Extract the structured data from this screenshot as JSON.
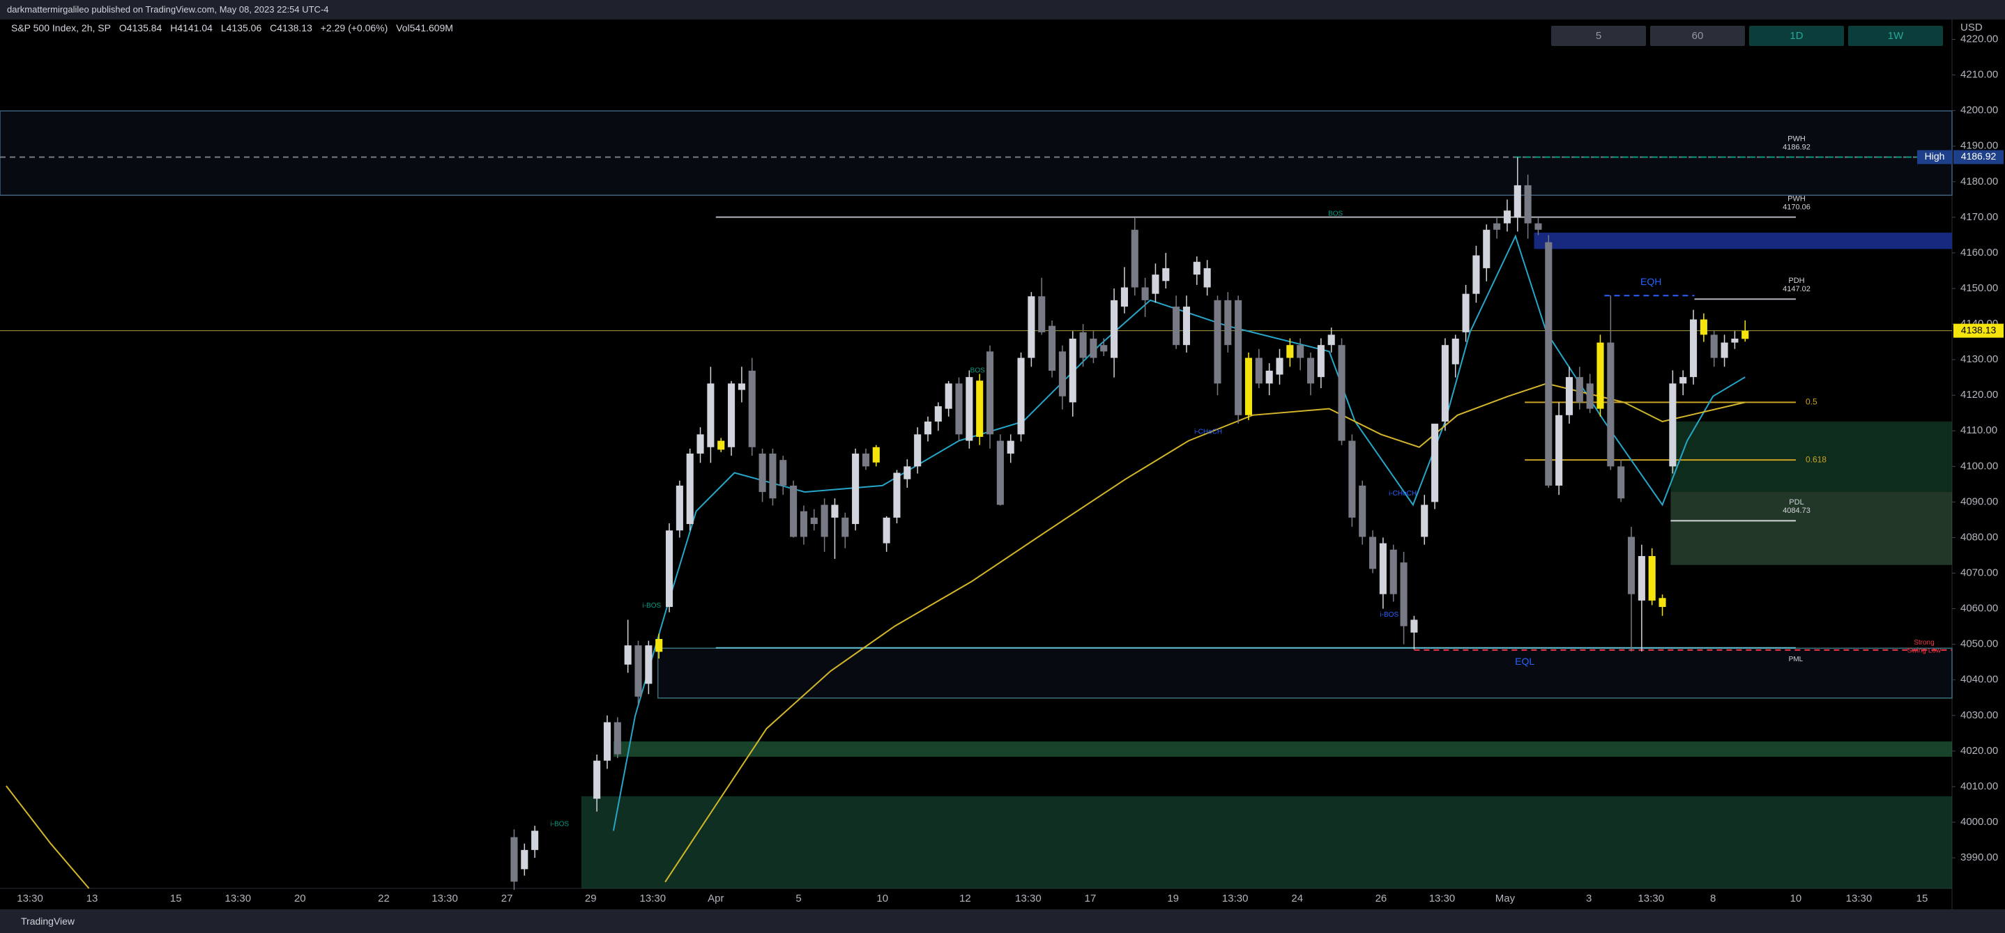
{
  "header": {
    "published": "darkmattermirgalileo published on TradingView.com, May 08, 2023 22:54 UTC-4",
    "symbol": "S&P 500 Index, 2h, SP",
    "ohlc": [
      "O4135.84",
      "H4141.04",
      "L4135.06",
      "C4138.13"
    ],
    "change": "+2.29 (+0.06%)",
    "volume": "Vol541.609M"
  },
  "interval_buttons": [
    "5",
    "60",
    "1D",
    "1W"
  ],
  "footer": "TradingView",
  "chart_data": {
    "type": "candlestick",
    "currency": "USD",
    "x": [
      -8,
      -7,
      -6,
      0,
      1,
      2,
      3,
      4,
      5,
      6,
      7,
      8,
      9,
      10,
      11,
      12,
      13,
      14,
      15,
      16,
      17,
      18,
      19,
      20,
      21,
      22,
      23,
      24,
      25,
      26,
      27,
      28,
      29,
      30,
      31,
      32,
      33,
      34,
      35,
      36,
      37,
      38,
      39,
      40,
      41,
      42,
      43,
      44,
      45,
      46,
      47,
      48,
      49,
      50,
      51,
      52,
      53,
      54,
      55,
      56,
      57,
      58,
      59,
      60,
      61,
      62,
      63,
      64,
      65,
      66,
      67,
      68,
      69,
      70,
      71,
      72,
      73,
      74,
      75,
      76,
      77,
      78,
      79,
      80,
      81,
      82,
      83,
      84,
      85,
      86,
      87,
      88,
      89,
      90,
      91,
      92,
      93,
      94,
      95,
      96,
      97,
      98,
      99,
      100,
      101,
      102,
      103,
      104,
      105,
      106,
      107,
      108,
      109,
      110,
      111
    ],
    "open": [
      3995.8,
      3986.8,
      3992.2,
      4006.6,
      4017.3,
      4028.1,
      4044.3,
      4049.7,
      4038.9,
      4047.9,
      4060.5,
      4082,
      4083.8,
      4103.6,
      4105.4,
      4107.2,
      4105.4,
      4121.5,
      4126.9,
      4103.6,
      4103.6,
      4101.8,
      4094.6,
      4087.4,
      4085.6,
      4089.2,
      4085.6,
      4085.6,
      4083.8,
      4103.6,
      4101.1,
      4078.4,
      4085.6,
      4096.4,
      4100,
      4109,
      4112.6,
      4116.2,
      4123.3,
      4107.2,
      4108.3,
      4132.3,
      4107.2,
      4103.6,
      4109,
      4130.5,
      4147.8,
      4139.5,
      4132.3,
      4118,
      4137.7,
      4135.9,
      4134.1,
      4130.5,
      4144.9,
      4166.5,
      4150.3,
      4148.5,
      4152.1,
      4144.9,
      4134.1,
      4153.9,
      4150.3,
      4146.7,
      4146.7,
      4146.7,
      4130.5,
      4130.5,
      4123.3,
      4125.8,
      4130.5,
      4134.1,
      4130.5,
      4125.1,
      4134.1,
      4134.1,
      4107.2,
      4094.6,
      4080.2,
      4064.1,
      4076.6,
      4073,
      4053.3,
      4080.2,
      4090,
      4112.6,
      4128.7,
      4137.7,
      4148.5,
      4155.7,
      4168.3,
      4168.3,
      4170,
      4179,
      4168.3,
      4163,
      4094.6,
      4114.4,
      4125.1,
      4123.3,
      4116.2,
      4134.8,
      4100,
      4080.2,
      4062.3,
      4074.8,
      4060.5,
      4100,
      4123.3,
      4125.1,
      4141.3,
      4137,
      4130.5,
      4134.8,
      4135.84
    ],
    "high": [
      3998,
      3994,
      3999,
      4019,
      4030,
      4029.5,
      4056.9,
      4051,
      4051,
      4053,
      4084,
      4096,
      4105,
      4111,
      4128,
      4108,
      4124,
      4128,
      4130.5,
      4105,
      4105,
      4103,
      4096,
      4089,
      4088,
      4091,
      4091,
      4087,
      4105,
      4105,
      4106,
      4086,
      4099,
      4102,
      4111,
      4114,
      4118,
      4124,
      4125,
      4127,
      4126,
      4134,
      4109,
      4109,
      4132,
      4149,
      4153,
      4141,
      4134,
      4138,
      4140,
      4138,
      4136,
      4150,
      4156,
      4170,
      4153,
      4157,
      4160,
      4148,
      4148,
      4159,
      4158,
      4148,
      4149,
      4148,
      4132,
      4133,
      4129,
      4133,
      4136,
      4136,
      4132,
      4136,
      4139,
      4136,
      4109,
      4096,
      4082,
      4080,
      4078,
      4076,
      4058,
      4092,
      4112,
      4136,
      4137,
      4151,
      4162,
      4168,
      4170,
      4175,
      4186.92,
      4182,
      4170,
      4165,
      4118,
      4128,
      4128,
      4126,
      4137,
      4148,
      4102,
      4083,
      4078,
      4077,
      4064,
      4127,
      4127,
      4144,
      4143,
      4138,
      4137,
      4138,
      4141.04
    ],
    "low": [
      3981,
      3985,
      3990,
      4003,
      4015,
      4018,
      4042,
      4033,
      4036,
      4046,
      4059,
      4080,
      4082,
      4101,
      4101,
      4104,
      4103,
      4118,
      4103,
      4090,
      4089,
      4092,
      4080,
      4078,
      4082,
      4076,
      4074,
      4077,
      4082,
      4099,
      4100,
      4076,
      4084,
      4094,
      4098,
      4107,
      4110,
      4114,
      4107,
      4105,
      4106,
      4105,
      4089,
      4101,
      4107,
      4128,
      4137,
      4125,
      4116,
      4114,
      4128,
      4129,
      4131,
      4125,
      4143,
      4148,
      4142,
      4146,
      4150,
      4133,
      4132,
      4151,
      4148,
      4120,
      4132,
      4112,
      4113,
      4122,
      4120,
      4123,
      4128,
      4127,
      4120,
      4122,
      4132,
      4106,
      4083,
      4078,
      4070,
      4060,
      4062,
      4050,
      4048.6,
      4078,
      4088,
      4110,
      4125,
      4135,
      4146,
      4152,
      4164,
      4166,
      4166,
      4164,
      4165,
      4094,
      4092,
      4112,
      4116,
      4115,
      4114,
      4099,
      4090,
      4048,
      4048,
      4061,
      4058,
      4098,
      4120,
      4123,
      4135,
      4128,
      4128,
      4133,
      4135.06
    ],
    "close": [
      3983.3,
      3992.2,
      3997.6,
      4017.3,
      4028.1,
      4019.1,
      4049.7,
      4035.3,
      4049.7,
      4051.5,
      4082,
      4094.6,
      4103.6,
      4109,
      4123.3,
      4104.7,
      4123.3,
      4123.3,
      4105.4,
      4092.8,
      4091,
      4094.6,
      4080.2,
      4080.2,
      4083.8,
      4080.2,
      4089.2,
      4080.2,
      4103.6,
      4100,
      4105.4,
      4085.6,
      4098.2,
      4100,
      4109,
      4112.6,
      4116.9,
      4123.3,
      4109,
      4125.1,
      4124.1,
      4109,
      4089.2,
      4107.2,
      4130.5,
      4147.8,
      4137.7,
      4126.9,
      4119.7,
      4135.9,
      4130.5,
      4130.5,
      4132.3,
      4146.7,
      4150.3,
      4150.3,
      4146.7,
      4153.9,
      4155.7,
      4134.1,
      4144.9,
      4157.5,
      4155.7,
      4123.3,
      4134.1,
      4114.4,
      4114.4,
      4123.3,
      4126.9,
      4130.5,
      4134.1,
      4130.5,
      4123.3,
      4134.1,
      4137,
      4107.2,
      4085.6,
      4080.2,
      4071.2,
      4078.4,
      4064.1,
      4055.1,
      4056.9,
      4089.2,
      4112,
      4134.1,
      4135.9,
      4148.5,
      4159.3,
      4166.5,
      4166.5,
      4171.9,
      4179,
      4168.3,
      4166.5,
      4094.6,
      4114.4,
      4125.1,
      4118,
      4116.2,
      4134.8,
      4100,
      4091,
      4064.1,
      4074.8,
      4062.3,
      4063,
      4123.3,
      4125.1,
      4141.3,
      4137,
      4130.5,
      4134.8,
      4135.9,
      4138.13
    ],
    "up_color": "#d1d4dc",
    "down_color": "#787b86",
    "highlight_color": "#f5e50d",
    "highlight": [
      6,
      12,
      27,
      37,
      63,
      67,
      97,
      102,
      103,
      107,
      111
    ],
    "xlim": [
      -57.7,
      131
    ],
    "xticks": [
      {
        "value": -54.8,
        "label": "13:30"
      },
      {
        "value": -48.8,
        "label": "13"
      },
      {
        "value": -40.7,
        "label": "15"
      },
      {
        "value": -34.7,
        "label": "13:30"
      },
      {
        "value": -28.7,
        "label": "20"
      },
      {
        "value": -20.6,
        "label": "22"
      },
      {
        "value": -14.7,
        "label": "13:30"
      },
      {
        "value": -8.7,
        "label": "27"
      },
      {
        "value": -0.6,
        "label": "29"
      },
      {
        "value": 5.4,
        "label": "13:30"
      },
      {
        "value": 11.5,
        "label": "Apr"
      },
      {
        "value": 19.5,
        "label": "5"
      },
      {
        "value": 27.6,
        "label": "10"
      },
      {
        "value": 35.6,
        "label": "12"
      },
      {
        "value": 41.7,
        "label": "13:30"
      },
      {
        "value": 47.7,
        "label": "17"
      },
      {
        "value": 55.7,
        "label": "19"
      },
      {
        "value": 61.7,
        "label": "13:30"
      },
      {
        "value": 67.7,
        "label": "24"
      },
      {
        "value": 75.8,
        "label": "26"
      },
      {
        "value": 81.7,
        "label": "13:30"
      },
      {
        "value": 87.8,
        "label": "May"
      },
      {
        "value": 95.9,
        "label": "3"
      },
      {
        "value": 101.9,
        "label": "13:30"
      },
      {
        "value": 107.9,
        "label": "8"
      },
      {
        "value": 115.9,
        "label": "10"
      },
      {
        "value": 122,
        "label": "13:30"
      },
      {
        "value": 128.1,
        "label": "15"
      }
    ],
    "ylim": [
      3981.4,
      4225
    ],
    "yticks": [
      {
        "value": 3990,
        "label": "3990.00"
      },
      {
        "value": 4000,
        "label": "4000.00"
      },
      {
        "value": 4010,
        "label": "4010.00"
      },
      {
        "value": 4020,
        "label": "4020.00"
      },
      {
        "value": 4030,
        "label": "4030.00"
      },
      {
        "value": 4040,
        "label": "4040.00"
      },
      {
        "value": 4050,
        "label": "4050.00"
      },
      {
        "value": 4060,
        "label": "4060.00"
      },
      {
        "value": 4070,
        "label": "4070.00"
      },
      {
        "value": 4080,
        "label": "4080.00"
      },
      {
        "value": 4090,
        "label": "4090.00"
      },
      {
        "value": 4100,
        "label": "4100.00"
      },
      {
        "value": 4110,
        "label": "4110.00"
      },
      {
        "value": 4120,
        "label": "4120.00"
      },
      {
        "value": 4130,
        "label": "4130.00"
      },
      {
        "value": 4140,
        "label": "4140.00"
      },
      {
        "value": 4150,
        "label": "4150.00"
      },
      {
        "value": 4160,
        "label": "4160.00"
      },
      {
        "value": 4170,
        "label": "4170.00"
      },
      {
        "value": 4180,
        "label": "4180.00"
      },
      {
        "value": 4190,
        "label": "4190.00"
      },
      {
        "value": 4200,
        "label": "4200.00"
      },
      {
        "value": 4210,
        "label": "4210.00"
      },
      {
        "value": 4220,
        "label": "4220.00"
      }
    ],
    "moving_averages": [
      {
        "color": "#26a6c8",
        "x": [
          1.6,
          3.7,
          6.6,
          9.6,
          13.3,
          20.1,
          27.6,
          35,
          41.2,
          48.6,
          53.5,
          60.9,
          70.8,
          73.3,
          78.9,
          82,
          84.4,
          88.8,
          91.8,
          97.4,
          103,
          105.4,
          107.9,
          111
        ],
        "values": [
          3997.6,
          4029.9,
          4058.7,
          4087.4,
          4098.2,
          4092.8,
          4094.6,
          4107.2,
          4112.6,
          4134.1,
          4146.7,
          4139.5,
          4132.3,
          4112.6,
          4089.2,
          4112.6,
          4137.7,
          4164.7,
          4137.7,
          4112.6,
          4089.2,
          4107.2,
          4119.7,
          4125.1
        ]
      },
      {
        "color": "#d4b62a",
        "x": [
          -57.1,
          -52.8,
          -49.1,
          0,
          6.6,
          11.5,
          16.4,
          22.6,
          28.8,
          36.2,
          43.6,
          51.1,
          57.2,
          63.4,
          70.8,
          75.8,
          79.5,
          83.2,
          88.1,
          91.8,
          99.3,
          103,
          111
        ],
        "values": [
          4010.2,
          3994,
          3981.4,
          null,
          3983.2,
          4004.8,
          4026.3,
          4042.5,
          4055.1,
          4067.6,
          4082,
          4096.4,
          4107.2,
          4114.4,
          4116.2,
          4109,
          4105.4,
          4114.4,
          4119.7,
          4123.3,
          4118,
          4112.6,
          4118
        ]
      }
    ],
    "zones": [
      {
        "from": 4176.2,
        "to": 4199.9,
        "x0": -57.7,
        "color": "rgba(60,90,140,0.12)",
        "border": "#3f5f80"
      },
      {
        "from": 4161.1,
        "to": 4165.7,
        "x0": 90.6,
        "color": "rgba(25,45,140,0.9)"
      },
      {
        "from": 4092.8,
        "to": 4112.6,
        "x0": 103.8,
        "color": "rgba(25,80,50,0.55)"
      },
      {
        "from": 4072.3,
        "to": 4092.8,
        "x0": 103.8,
        "color": "rgba(70,110,80,0.5)"
      },
      {
        "from": 4034.9,
        "to": 4048.9,
        "x0": 5.9,
        "color": "rgba(60,90,140,0.12)",
        "border": "#3d7080"
      },
      {
        "from": 4018.4,
        "to": 4022.7,
        "x0": 1.6,
        "color": "rgba(40,110,70,0.6)"
      },
      {
        "from": 3981.4,
        "to": 4007.3,
        "x0": -1.5,
        "color": "rgba(25,85,60,0.55)"
      }
    ],
    "levels": [
      {
        "label": "PWH",
        "value": 4186.92,
        "x0": -57.7,
        "x1": 131,
        "color": "#787b86",
        "dash": true
      },
      {
        "value": 4186.92,
        "x0": 88.8,
        "x1": 131,
        "color": "#089981",
        "dash": true
      },
      {
        "label": "PWH",
        "value": 4170.06,
        "x0": 11.5,
        "x1": 115.9,
        "color": "#b2b5be"
      },
      {
        "label": "PDH",
        "value": 4147.02,
        "x0": 106.1,
        "x1": 115.9,
        "color": "#b2b5be"
      },
      {
        "value": 4148,
        "x0": 97.4,
        "x1": 106.1,
        "color": "#2962ff",
        "dash": true
      },
      {
        "fib": 0.5,
        "value": 4118,
        "x0": 89.7,
        "x1": 115.9,
        "color": "#c9a227"
      },
      {
        "fib": 0.618,
        "value": 4101.8,
        "x0": 89.7,
        "x1": 115.9,
        "color": "#c9a227"
      },
      {
        "label": "PDL",
        "value": 4084.73,
        "x0": 103.8,
        "x1": 115.9,
        "color": "#d1d4dc"
      },
      {
        "value": 4049,
        "x0": 11.5,
        "x1": 115.9,
        "color": "#5fb8c8"
      },
      {
        "value": 4048.4,
        "x0": 79,
        "x1": 131,
        "color": "#f23645",
        "dash": true
      }
    ],
    "annotations": [
      {
        "text": "i-BOS",
        "x": 5.3,
        "y": 4060.8,
        "color": "#089981"
      },
      {
        "text": "BOS",
        "x": 36.8,
        "y": 4126.9,
        "color": "#089981"
      },
      {
        "text": "BOS",
        "x": 71.4,
        "y": 4171,
        "color": "#089981"
      },
      {
        "text": "i-CHoCH",
        "x": 59.1,
        "y": 4109.7,
        "color": "#2962ff"
      },
      {
        "text": "i-CHoCH",
        "x": 77.9,
        "y": 4092.4,
        "color": "#2962ff"
      },
      {
        "text": "i-BOS",
        "x": 76.6,
        "y": 4058.3,
        "color": "#2962ff"
      },
      {
        "text": "i-BOS",
        "x": -3.6,
        "y": 3999.4,
        "color": "#089981"
      },
      {
        "text": "EQH",
        "x": 101.9,
        "y": 4151.7,
        "color": "#2962ff"
      },
      {
        "text": "EQL",
        "x": 89.7,
        "y": 4045,
        "color": "#2962ff"
      },
      {
        "text": "Strong",
        "x": 128.3,
        "y": 4050.5,
        "color": "#f23645"
      },
      {
        "text": "Swing Low",
        "x": 128.3,
        "y": 4048.2,
        "color": "#f23645"
      },
      {
        "text": "PML",
        "x": 115.9,
        "y": 4045.8,
        "color": "#d1d4dc"
      }
    ],
    "high_tag": {
      "label": "High",
      "value": 4186.92,
      "color": "#1e3f8a"
    }
  }
}
